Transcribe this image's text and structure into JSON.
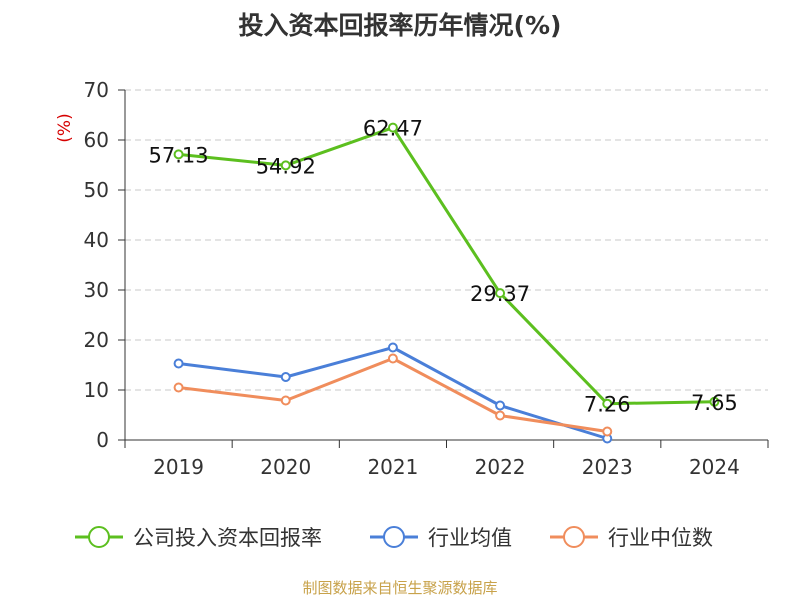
{
  "chart_data": {
    "type": "line",
    "title": "投入资本回报率历年情况(%)",
    "unit_label": "(%)",
    "categories": [
      "2019",
      "2020",
      "2021",
      "2022",
      "2023",
      "2024"
    ],
    "y_ticks": [
      "0",
      "10",
      "20",
      "30",
      "40",
      "50",
      "60",
      "70"
    ],
    "ylim": [
      0,
      70
    ],
    "grid": true,
    "series": [
      {
        "name": "公司投入资本回报率",
        "color": "#5cbf1f",
        "values": [
          57.13,
          54.92,
          62.47,
          29.37,
          7.26,
          7.65
        ],
        "labels": [
          "57.13",
          "54.92",
          "62.47",
          "29.37",
          "7.26",
          "7.65"
        ]
      },
      {
        "name": "行业均值",
        "color": "#4a7fd8",
        "values": [
          15.3,
          12.6,
          18.5,
          6.9,
          0.3,
          null
        ]
      },
      {
        "name": "行业中位数",
        "color": "#f08d5c",
        "values": [
          10.5,
          7.9,
          16.3,
          4.9,
          1.7,
          null
        ]
      }
    ],
    "legend_position": "bottom",
    "source": "制图数据来自恒生聚源数据库"
  }
}
